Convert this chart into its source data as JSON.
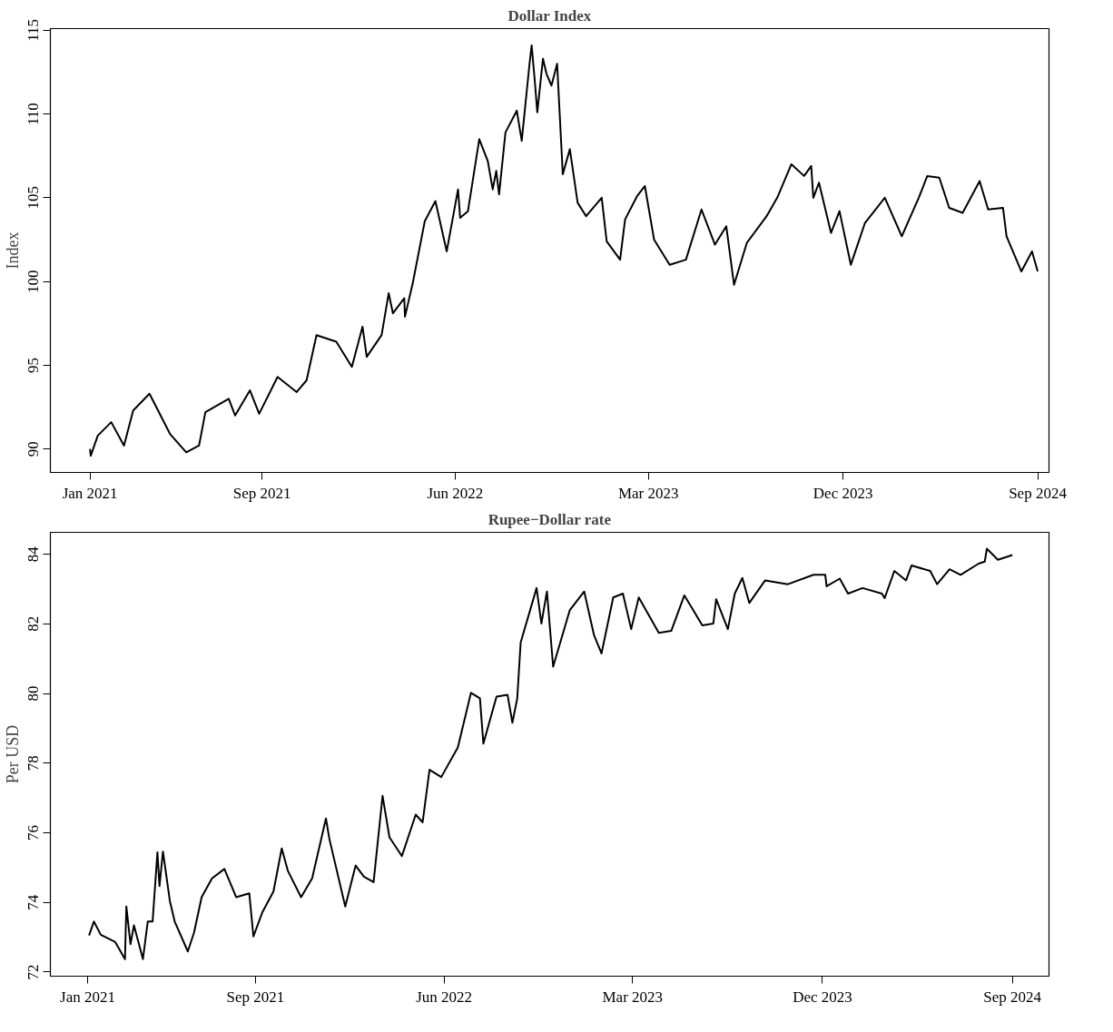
{
  "chart_data": [
    {
      "type": "line",
      "title": "Dollar Index",
      "ylabel": "Index",
      "xlim": [
        "2020-11-06",
        "2024-09-17"
      ],
      "ylim": [
        88.6,
        115.1
      ],
      "xticks": [
        {
          "value": "2021-01-01",
          "label": "Jan 2021"
        },
        {
          "value": "2021-09-01",
          "label": "Sep 2021"
        },
        {
          "value": "2022-06-01",
          "label": "Jun 2022"
        },
        {
          "value": "2023-03-01",
          "label": "Mar 2023"
        },
        {
          "value": "2023-12-01",
          "label": "Dec 2023"
        },
        {
          "value": "2024-09-01",
          "label": "Sep 2024"
        }
      ],
      "yticks": [
        90,
        95,
        100,
        105,
        110,
        115
      ],
      "grid": false,
      "line_style": "solid",
      "marker": "none",
      "series": [
        {
          "color": "#000000",
          "x": [
            "2021-01-01",
            "2021-01-02",
            "2021-01-12",
            "2021-01-31",
            "2021-02-18",
            "2021-03-03",
            "2021-03-26",
            "2021-04-24",
            "2021-05-17",
            "2021-06-04",
            "2021-06-13",
            "2021-07-16",
            "2021-07-25",
            "2021-08-15",
            "2021-08-28",
            "2021-09-23",
            "2021-10-20",
            "2021-11-03",
            "2021-11-17",
            "2021-12-15",
            "2022-01-06",
            "2022-01-21",
            "2022-01-27",
            "2022-02-17",
            "2022-02-27",
            "2022-03-05",
            "2022-03-21",
            "2022-03-22",
            "2022-04-02",
            "2022-04-19",
            "2022-05-04",
            "2022-05-20",
            "2022-06-05",
            "2022-06-08",
            "2022-06-19",
            "2022-07-05",
            "2022-07-17",
            "2022-07-24",
            "2022-07-29",
            "2022-08-02",
            "2022-08-11",
            "2022-08-27",
            "2022-09-03",
            "2022-09-14",
            "2022-09-17",
            "2022-09-21",
            "2022-09-25",
            "2022-10-03",
            "2022-10-08",
            "2022-10-15",
            "2022-10-23",
            "2022-10-31",
            "2022-11-10",
            "2022-11-21",
            "2022-12-03",
            "2022-12-25",
            "2023-01-01",
            "2023-01-20",
            "2023-01-27",
            "2023-02-13",
            "2023-02-24",
            "2023-03-09",
            "2023-03-31",
            "2023-04-23",
            "2023-05-15",
            "2023-06-03",
            "2023-06-19",
            "2023-06-30",
            "2023-07-18",
            "2023-08-15",
            "2023-08-30",
            "2023-09-19",
            "2023-10-07",
            "2023-10-17",
            "2023-10-20",
            "2023-10-28",
            "2023-11-14",
            "2023-11-26",
            "2023-12-12",
            "2024-01-01",
            "2024-01-29",
            "2024-02-22",
            "2024-03-17",
            "2024-03-29",
            "2024-04-15",
            "2024-04-29",
            "2024-05-18",
            "2024-06-11",
            "2024-06-23",
            "2024-07-14",
            "2024-07-19",
            "2024-08-09",
            "2024-08-24",
            "2024-09-01"
          ],
          "values": [
            90.0,
            89.6,
            90.8,
            91.6,
            90.2,
            92.3,
            93.3,
            90.9,
            89.8,
            90.2,
            92.2,
            93.0,
            92.0,
            93.5,
            92.1,
            94.3,
            93.4,
            94.1,
            96.8,
            96.4,
            94.9,
            97.3,
            95.5,
            96.8,
            99.3,
            98.1,
            99.0,
            97.9,
            99.9,
            103.6,
            104.8,
            101.8,
            105.5,
            103.8,
            104.2,
            108.5,
            107.2,
            105.5,
            106.6,
            105.2,
            108.9,
            110.2,
            108.4,
            113.0,
            114.1,
            112.2,
            110.1,
            113.3,
            112.4,
            111.7,
            113.0,
            106.4,
            107.9,
            104.7,
            103.9,
            105.0,
            102.4,
            101.3,
            103.7,
            105.1,
            105.7,
            102.5,
            101.0,
            101.3,
            104.3,
            102.2,
            103.3,
            99.8,
            102.3,
            103.9,
            105.0,
            107.0,
            106.3,
            106.9,
            105.0,
            105.9,
            102.9,
            104.2,
            101.0,
            103.5,
            105.0,
            102.7,
            105.0,
            106.3,
            106.2,
            104.4,
            104.1,
            106.0,
            104.3,
            104.4,
            102.7,
            100.6,
            101.8,
            100.6
          ]
        }
      ]
    },
    {
      "type": "line",
      "title": "Rupee−Dollar rate",
      "ylabel": "Per USD",
      "xlim": [
        "2020-11-08",
        "2024-10-24"
      ],
      "ylim": [
        71.88,
        84.63
      ],
      "xticks": [
        {
          "value": "2021-01-01",
          "label": "Jan 2021"
        },
        {
          "value": "2021-09-01",
          "label": "Sep 2021"
        },
        {
          "value": "2022-06-01",
          "label": "Jun 2022"
        },
        {
          "value": "2023-03-01",
          "label": "Mar 2023"
        },
        {
          "value": "2023-12-01",
          "label": "Dec 2023"
        },
        {
          "value": "2024-09-01",
          "label": "Sep 2024"
        }
      ],
      "yticks": [
        72,
        74,
        76,
        78,
        80,
        82,
        84
      ],
      "grid": false,
      "line_style": "solid",
      "marker": "none",
      "series": [
        {
          "color": "#000000",
          "x": [
            "2021-01-03",
            "2021-01-10",
            "2021-01-20",
            "2021-02-10",
            "2021-02-24",
            "2021-02-26",
            "2021-03-04",
            "2021-03-09",
            "2021-03-22",
            "2021-03-29",
            "2021-04-05",
            "2021-04-12",
            "2021-04-15",
            "2021-04-20",
            "2021-04-30",
            "2021-05-07",
            "2021-05-26",
            "2021-06-04",
            "2021-06-15",
            "2021-06-30",
            "2021-07-18",
            "2021-08-04",
            "2021-08-23",
            "2021-08-29",
            "2021-09-11",
            "2021-09-27",
            "2021-10-09",
            "2021-10-18",
            "2021-11-06",
            "2021-11-22",
            "2021-12-12",
            "2021-12-17",
            "2022-01-09",
            "2022-01-24",
            "2022-02-05",
            "2022-02-19",
            "2022-03-04",
            "2022-03-14",
            "2022-04-01",
            "2022-04-21",
            "2022-05-01",
            "2022-05-11",
            "2022-05-28",
            "2022-06-21",
            "2022-07-10",
            "2022-07-23",
            "2022-07-28",
            "2022-08-16",
            "2022-09-01",
            "2022-09-08",
            "2022-09-15",
            "2022-09-20",
            "2022-10-02",
            "2022-10-13",
            "2022-10-20",
            "2022-10-28",
            "2022-11-06",
            "2022-11-30",
            "2022-12-21",
            "2023-01-04",
            "2023-01-15",
            "2023-02-01",
            "2023-02-15",
            "2023-02-27",
            "2023-03-10",
            "2023-04-08",
            "2023-04-26",
            "2023-05-15",
            "2023-06-10",
            "2023-06-26",
            "2023-06-30",
            "2023-07-17",
            "2023-07-27",
            "2023-08-07",
            "2023-08-17",
            "2023-09-09",
            "2023-10-12",
            "2023-11-18",
            "2023-12-05",
            "2023-12-07",
            "2023-12-26",
            "2024-01-07",
            "2024-01-28",
            "2024-02-25",
            "2024-02-29",
            "2024-03-14",
            "2024-03-31",
            "2024-04-08",
            "2024-05-05",
            "2024-05-15",
            "2024-06-02",
            "2024-06-18",
            "2024-07-14",
            "2024-07-23",
            "2024-07-26",
            "2024-08-11",
            "2024-09-01"
          ],
          "values": [
            73.05,
            73.45,
            73.07,
            72.86,
            72.37,
            73.88,
            72.8,
            73.34,
            72.37,
            73.45,
            73.45,
            75.44,
            74.47,
            75.46,
            74.04,
            73.45,
            72.59,
            73.13,
            74.15,
            74.69,
            74.96,
            74.15,
            74.26,
            73.02,
            73.72,
            74.31,
            75.55,
            74.9,
            74.15,
            74.69,
            76.41,
            75.82,
            73.88,
            75.06,
            74.74,
            74.58,
            77.06,
            75.87,
            75.33,
            76.52,
            76.3,
            77.81,
            77.6,
            78.45,
            80.02,
            79.86,
            78.56,
            79.91,
            79.96,
            79.16,
            79.86,
            81.47,
            82.28,
            83.03,
            82.01,
            82.93,
            80.77,
            82.39,
            82.93,
            81.69,
            81.15,
            82.76,
            82.87,
            81.85,
            82.76,
            81.74,
            81.8,
            82.82,
            81.96,
            82.01,
            82.71,
            81.85,
            82.87,
            83.32,
            82.6,
            83.25,
            83.14,
            83.41,
            83.41,
            83.08,
            83.3,
            82.87,
            83.03,
            82.87,
            82.74,
            83.52,
            83.25,
            83.68,
            83.52,
            83.14,
            83.57,
            83.41,
            83.73,
            83.79,
            84.16,
            83.84,
            83.98
          ]
        }
      ]
    }
  ]
}
